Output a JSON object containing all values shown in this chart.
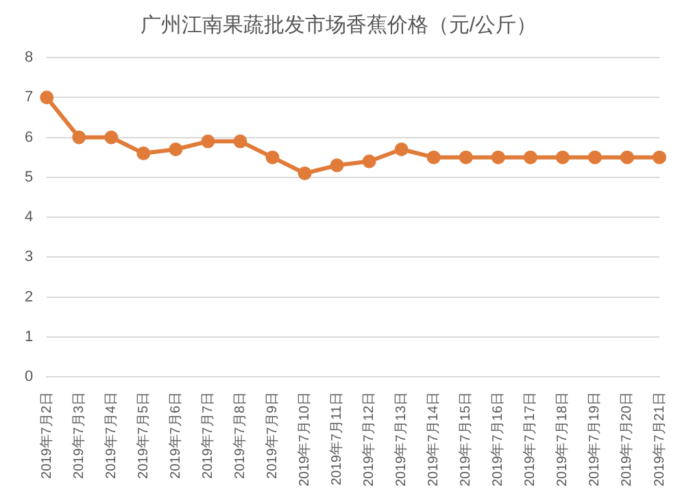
{
  "chart_data": {
    "type": "line",
    "title": "广州江南果蔬批发市场香蕉价格（元/公斤）",
    "categories": [
      "2019年7月2日",
      "2019年7月3日",
      "2019年7月4日",
      "2019年7月5日",
      "2019年7月6日",
      "2019年7月7日",
      "2019年7月8日",
      "2019年7月9日",
      "2019年7月10日",
      "2019年7月11日",
      "2019年7月12日",
      "2019年7月13日",
      "2019年7月14日",
      "2019年7月15日",
      "2019年7月16日",
      "2019年7月17日",
      "2019年7月18日",
      "2019年7月19日",
      "2019年7月20日",
      "2019年7月21日"
    ],
    "series": [
      {
        "color": "#e07b39",
        "values": [
          7.0,
          6.0,
          6.0,
          5.6,
          5.7,
          5.9,
          5.9,
          5.5,
          5.1,
          5.3,
          5.4,
          5.7,
          5.5,
          5.5,
          5.5,
          5.5,
          5.5,
          5.5,
          5.5,
          5.5
        ]
      }
    ],
    "ylim": [
      0,
      8
    ],
    "yticks": [
      0,
      1,
      2,
      3,
      4,
      5,
      6,
      7,
      8
    ],
    "grid": "y",
    "legend": false,
    "marker": "circle",
    "line_style": "solid"
  }
}
